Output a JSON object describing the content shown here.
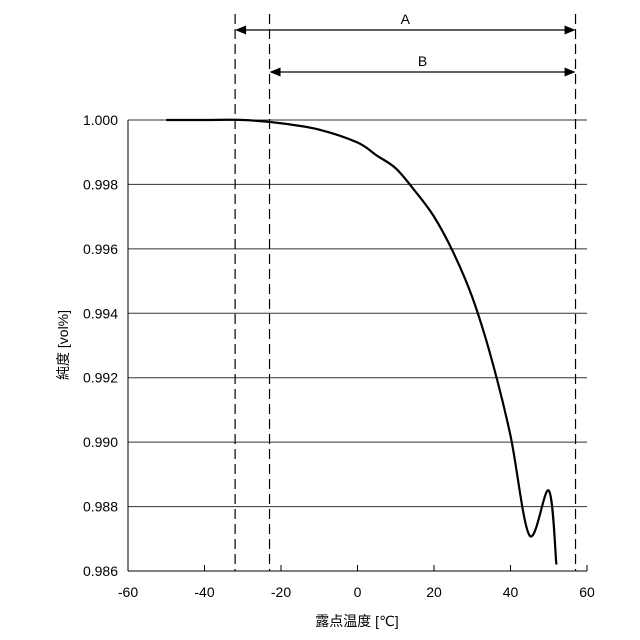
{
  "chart_data": {
    "type": "line",
    "xlabel": "露点温度 [℃]",
    "ylabel": "純度 [vol%]",
    "xlim": [
      -60,
      60
    ],
    "ylim": [
      0.986,
      1.0
    ],
    "x_ticks": [
      "-60",
      "-40",
      "-20",
      "0",
      "20",
      "40",
      "60"
    ],
    "x_tick_values": [
      -60,
      -40,
      -20,
      0,
      20,
      40,
      60
    ],
    "y_ticks": [
      "1.000",
      "0.998",
      "0.996",
      "0.994",
      "0.992",
      "0.990",
      "0.988",
      "0.986"
    ],
    "y_tick_values": [
      1.0,
      0.998,
      0.996,
      0.994,
      0.992,
      0.99,
      0.988,
      0.986
    ],
    "grid": "horizontal",
    "series": [
      {
        "x": [
          -50,
          -40,
          -30,
          -20,
          -10,
          0,
          5,
          10,
          15,
          20,
          25,
          30,
          35,
          40,
          45,
          50,
          52
        ],
        "y": [
          1.0,
          1.0,
          1.0,
          0.9999,
          0.9997,
          0.9993,
          0.9989,
          0.9985,
          0.9978,
          0.997,
          0.9959,
          0.9945,
          0.9926,
          0.9902,
          0.9871,
          0.9885,
          0.9862
        ]
      }
    ],
    "ranges": [
      {
        "label": "A",
        "x_start": -32,
        "x_end": 57
      },
      {
        "label": "B",
        "x_start": -23,
        "x_end": 57
      }
    ]
  }
}
